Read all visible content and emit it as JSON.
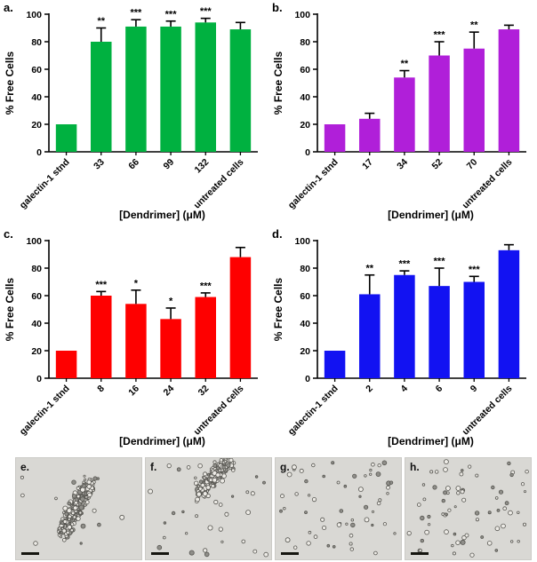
{
  "chart_data": [
    {
      "type": "bar",
      "label": "a.",
      "ylabel": "%  Free Cells",
      "xlabel": "[Dendrimer] (μM)",
      "ylim": [
        0,
        100
      ],
      "yticks": [
        0,
        20,
        40,
        60,
        80,
        100
      ],
      "color": "#00b140",
      "categories": [
        "galectin-1 stnd",
        "33",
        "66",
        "99",
        "132",
        "untreated cells"
      ],
      "values": [
        20,
        80,
        91,
        91,
        94,
        89
      ],
      "errors": [
        0,
        10,
        5,
        4,
        3,
        5
      ],
      "significance": [
        "",
        "**",
        "***",
        "***",
        "***",
        ""
      ]
    },
    {
      "type": "bar",
      "label": "b.",
      "ylabel": "%  Free Cells",
      "xlabel": "[Dendrimer] (μM)",
      "ylim": [
        0,
        100
      ],
      "yticks": [
        0,
        20,
        40,
        60,
        80,
        100
      ],
      "color": "#b01fd9",
      "categories": [
        "galectin-1 stnd",
        "17",
        "34",
        "52",
        "70",
        "untreated cells"
      ],
      "values": [
        20,
        24,
        54,
        70,
        75,
        89
      ],
      "errors": [
        0,
        4,
        5,
        10,
        12,
        3
      ],
      "significance": [
        "",
        "",
        "**",
        "***",
        "**",
        ""
      ]
    },
    {
      "type": "bar",
      "label": "c.",
      "ylabel": "%  Free Cells",
      "xlabel": "[Dendrimer] (μM)",
      "ylim": [
        0,
        100
      ],
      "yticks": [
        0,
        20,
        40,
        60,
        80,
        100
      ],
      "color": "#fe0000",
      "categories": [
        "galectin-1 stnd",
        "8",
        "16",
        "24",
        "32",
        "untreated cells"
      ],
      "values": [
        20,
        60,
        54,
        43,
        59,
        88
      ],
      "errors": [
        0,
        3,
        10,
        8,
        3,
        7
      ],
      "significance": [
        "",
        "***",
        "*",
        "*",
        "***",
        ""
      ]
    },
    {
      "type": "bar",
      "label": "d.",
      "ylabel": "%  Free Cells",
      "xlabel": "[Dendrimer] (μM)",
      "ylim": [
        0,
        100
      ],
      "yticks": [
        0,
        20,
        40,
        60,
        80,
        100
      ],
      "color": "#1212f2",
      "categories": [
        "galectin-1 stnd",
        "2",
        "4",
        "6",
        "9",
        "untreated cells"
      ],
      "values": [
        20,
        61,
        75,
        67,
        70,
        93
      ],
      "errors": [
        0,
        14,
        3,
        13,
        4,
        4
      ],
      "significance": [
        "",
        "**",
        "***",
        "***",
        "***",
        ""
      ]
    }
  ],
  "micrographs": [
    {
      "label": "e.",
      "pattern": "large-aggregate"
    },
    {
      "label": "f.",
      "pattern": "top-aggregate"
    },
    {
      "label": "g.",
      "pattern": "dispersed"
    },
    {
      "label": "h.",
      "pattern": "dispersed"
    }
  ]
}
